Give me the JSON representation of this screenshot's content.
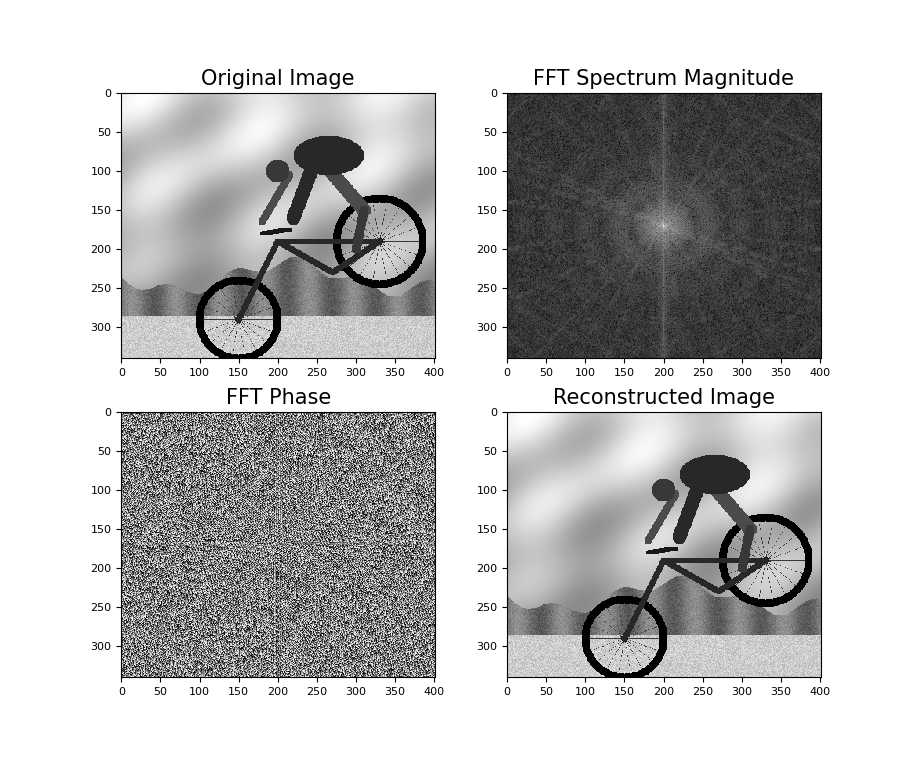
{
  "chart_data": [
    {
      "type": "image",
      "title": "Original Image",
      "color": "gray",
      "xlim": [
        0,
        401
      ],
      "ylim": [
        340,
        0
      ],
      "xticks": [
        0,
        50,
        100,
        150,
        200,
        250,
        300,
        350,
        400
      ],
      "yticks": [
        0,
        50,
        100,
        150,
        200,
        250,
        300
      ]
    },
    {
      "type": "magnitude",
      "title": "FFT Spectrum Magnitude",
      "color": "gray",
      "xlim": [
        0,
        401
      ],
      "ylim": [
        340,
        0
      ],
      "xticks": [
        0,
        50,
        100,
        150,
        200,
        250,
        300,
        350,
        400
      ],
      "yticks": [
        0,
        50,
        100,
        150,
        200,
        250,
        300
      ]
    },
    {
      "type": "phase",
      "title": "FFT Phase",
      "color": "gray",
      "xlim": [
        0,
        401
      ],
      "ylim": [
        340,
        0
      ],
      "xticks": [
        0,
        50,
        100,
        150,
        200,
        250,
        300,
        350,
        400
      ],
      "yticks": [
        0,
        50,
        100,
        150,
        200,
        250,
        300
      ]
    },
    {
      "type": "image",
      "title": "Reconstructed Image",
      "color": "gray",
      "xlim": [
        0,
        401
      ],
      "ylim": [
        340,
        0
      ],
      "xticks": [
        0,
        50,
        100,
        150,
        200,
        250,
        300,
        350,
        400
      ],
      "yticks": [
        0,
        50,
        100,
        150,
        200,
        250,
        300
      ]
    }
  ]
}
